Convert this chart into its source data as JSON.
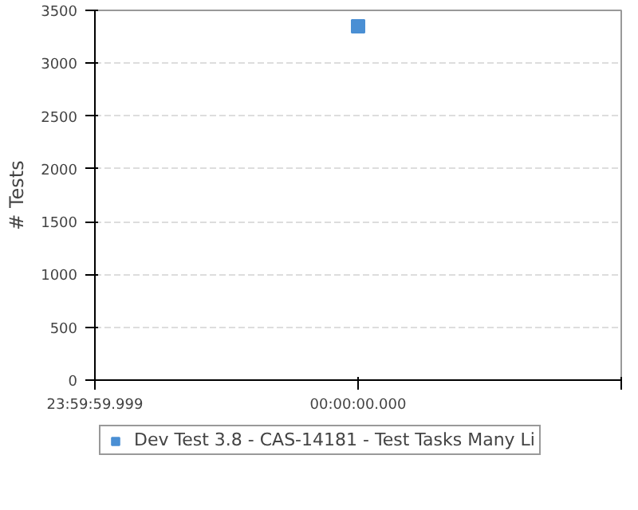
{
  "chart_data": {
    "type": "scatter",
    "ylabel": "# Tests",
    "categories": [
      "23:59:59.999",
      "00:00:00.000",
      null
    ],
    "series": [
      {
        "name": "Dev Test 3.8 - CAS-14181 - Test Tasks Many Li",
        "color": "#4a8fd4",
        "values": [
          null,
          3350,
          null
        ]
      }
    ],
    "ylim": [
      0,
      3500
    ],
    "yticks": [
      0,
      500,
      1000,
      1500,
      2000,
      2500,
      3000,
      3500
    ],
    "grid": "y",
    "legend": "bottom",
    "marker": "square"
  }
}
